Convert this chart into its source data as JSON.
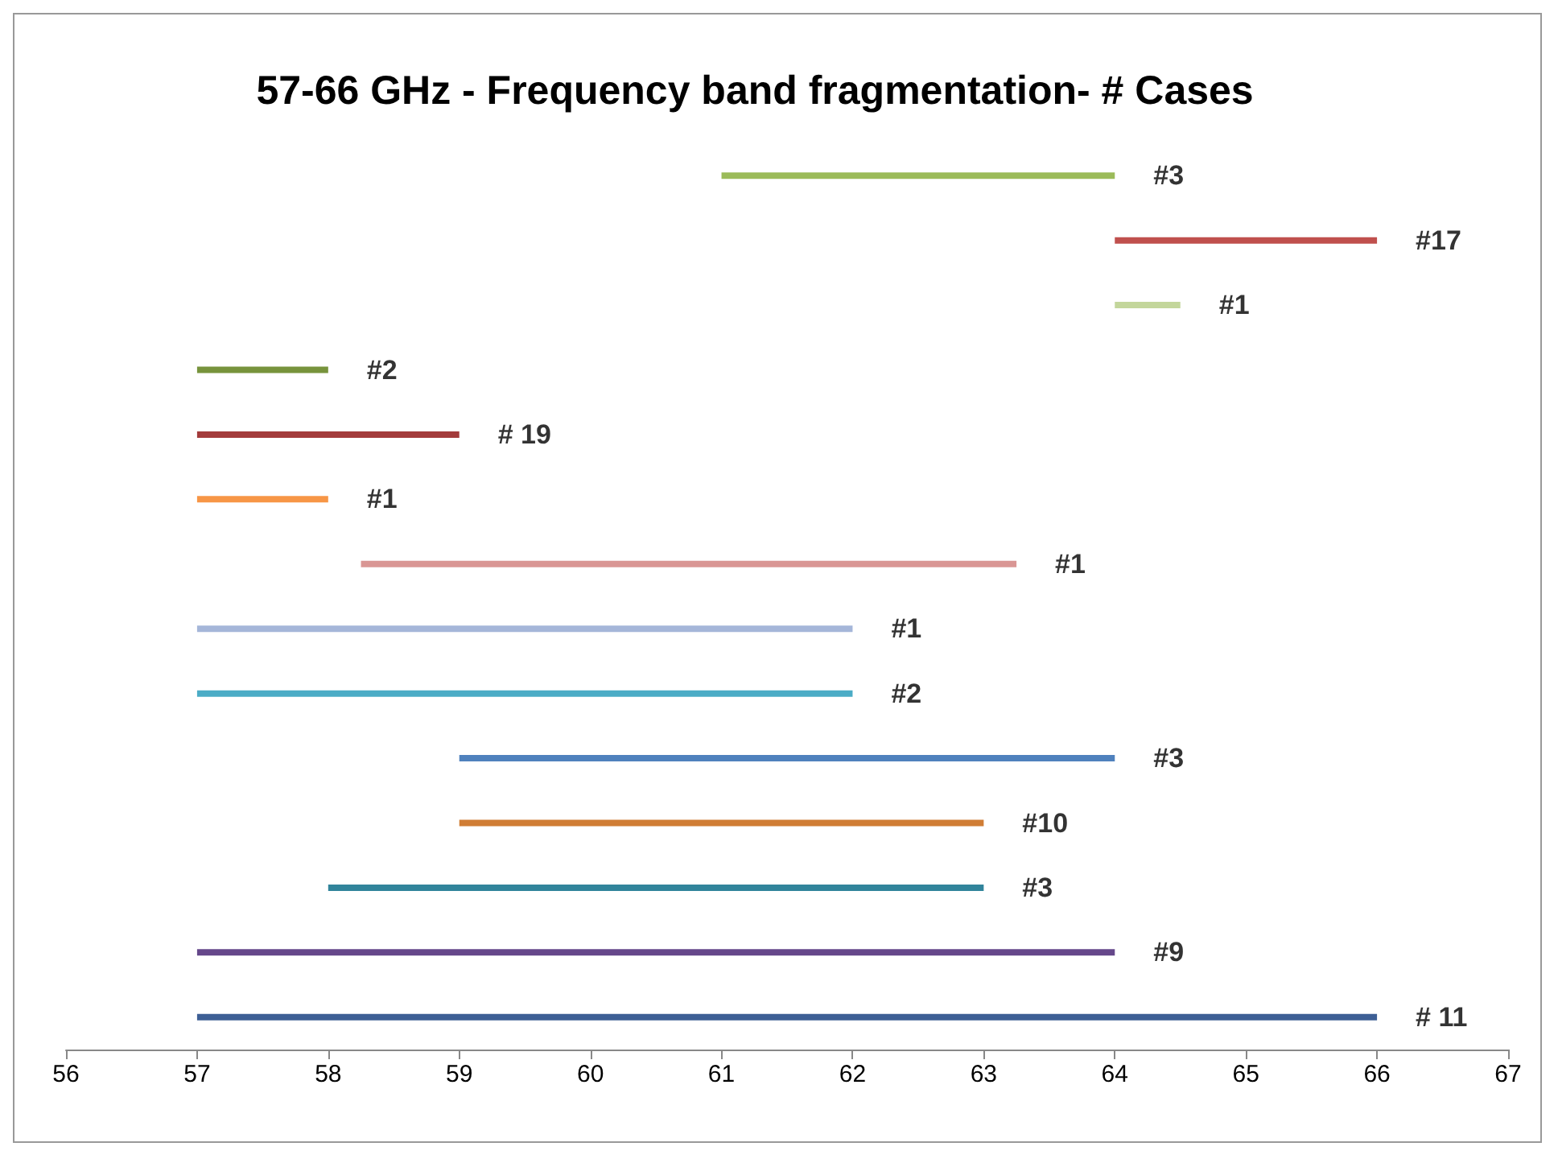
{
  "chart_data": {
    "type": "bar",
    "orientation": "horizontal",
    "title": "57-66 GHz - Frequency band fragmentation- # Cases",
    "xlim": [
      56,
      67
    ],
    "xticks": [
      56,
      57,
      58,
      59,
      60,
      61,
      62,
      63,
      64,
      65,
      66,
      67
    ],
    "categories": [
      null,
      null,
      null,
      null,
      null,
      null,
      null,
      null,
      null,
      null,
      null,
      null,
      null,
      null
    ],
    "base": [
      61,
      64,
      64,
      57,
      57,
      57,
      58.25,
      57,
      57,
      59,
      59,
      58,
      57,
      57
    ],
    "values": [
      3,
      2,
      0.5,
      1,
      2,
      1,
      5,
      5,
      5,
      5,
      4,
      5,
      7,
      9
    ],
    "colors": [
      "#9bbb59",
      "#c0504d",
      "#c3d69b",
      "#77933c",
      "#a33b3b",
      "#f79646",
      "#d99694",
      "#a5b6d9",
      "#4bacc6",
      "#4f81bd",
      "#d07d35",
      "#31849b",
      "#65478a",
      "#3d5f95"
    ],
    "annotations": [
      "#3",
      "#17",
      "#1",
      "#2",
      "# 19",
      "#1",
      "#1",
      "#1",
      "#2",
      "#3",
      "#10",
      "#3",
      "#9",
      "# 11"
    ]
  }
}
